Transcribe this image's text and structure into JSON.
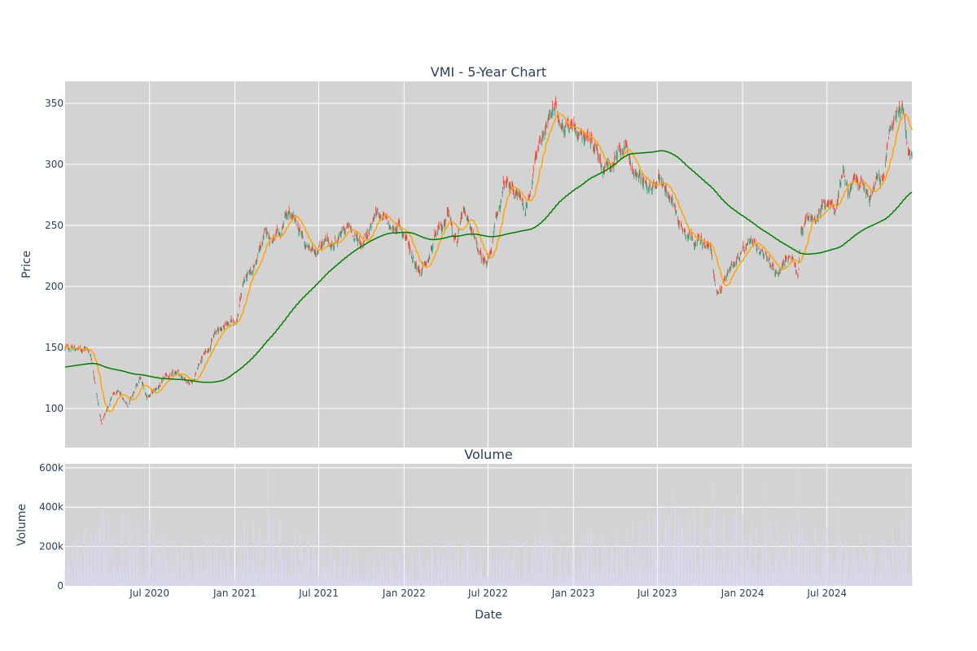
{
  "chart_data": [
    {
      "type": "candlestick",
      "title": "VMI - 5-Year Chart",
      "ylabel": "Price",
      "xlabel": "",
      "ylim": [
        68,
        368
      ],
      "yticks": [
        100,
        150,
        200,
        250,
        300,
        350
      ],
      "background": "#d3d3d3",
      "grid": true,
      "colors": {
        "up": "#3d9970",
        "down": "#ff4136",
        "ma_short": "#ffa500",
        "ma_long": "#008000"
      },
      "price_anchors": [
        [
          "2020-01-01",
          149
        ],
        [
          "2020-01-15",
          150
        ],
        [
          "2020-02-01",
          148
        ],
        [
          "2020-02-15",
          150
        ],
        [
          "2020-02-25",
          145
        ],
        [
          "2020-03-05",
          125
        ],
        [
          "2020-03-12",
          105
        ],
        [
          "2020-03-20",
          87
        ],
        [
          "2020-03-27",
          95
        ],
        [
          "2020-04-10",
          110
        ],
        [
          "2020-04-25",
          112
        ],
        [
          "2020-05-15",
          104
        ],
        [
          "2020-06-01",
          115
        ],
        [
          "2020-06-10",
          125
        ],
        [
          "2020-06-25",
          110
        ],
        [
          "2020-07-15",
          115
        ],
        [
          "2020-08-05",
          125
        ],
        [
          "2020-08-20",
          128
        ],
        [
          "2020-09-10",
          127
        ],
        [
          "2020-09-25",
          122
        ],
        [
          "2020-10-05",
          125
        ],
        [
          "2020-10-20",
          140
        ],
        [
          "2020-11-05",
          150
        ],
        [
          "2020-11-20",
          162
        ],
        [
          "2020-12-15",
          170
        ],
        [
          "2021-01-05",
          172
        ],
        [
          "2021-01-20",
          205
        ],
        [
          "2021-02-05",
          210
        ],
        [
          "2021-02-20",
          225
        ],
        [
          "2021-03-10",
          245
        ],
        [
          "2021-03-25",
          238
        ],
        [
          "2021-04-10",
          240
        ],
        [
          "2021-04-20",
          258
        ],
        [
          "2021-05-05",
          255
        ],
        [
          "2021-05-20",
          245
        ],
        [
          "2021-06-05",
          232
        ],
        [
          "2021-06-20",
          228
        ],
        [
          "2021-07-10",
          238
        ],
        [
          "2021-07-25",
          233
        ],
        [
          "2021-08-15",
          240
        ],
        [
          "2021-09-01",
          248
        ],
        [
          "2021-09-15",
          242
        ],
        [
          "2021-10-01",
          235
        ],
        [
          "2021-10-20",
          250
        ],
        [
          "2021-11-05",
          262
        ],
        [
          "2021-11-20",
          255
        ],
        [
          "2021-12-05",
          245
        ],
        [
          "2021-12-20",
          250
        ],
        [
          "2022-01-05",
          240
        ],
        [
          "2022-01-20",
          225
        ],
        [
          "2022-02-05",
          213
        ],
        [
          "2022-02-20",
          218
        ],
        [
          "2022-03-10",
          240
        ],
        [
          "2022-03-25",
          248
        ],
        [
          "2022-04-05",
          263
        ],
        [
          "2022-04-15",
          250
        ],
        [
          "2022-04-25",
          240
        ],
        [
          "2022-05-10",
          258
        ],
        [
          "2022-05-25",
          248
        ],
        [
          "2022-06-05",
          232
        ],
        [
          "2022-06-20",
          220
        ],
        [
          "2022-07-05",
          225
        ],
        [
          "2022-07-20",
          255
        ],
        [
          "2022-08-05",
          283
        ],
        [
          "2022-08-20",
          280
        ],
        [
          "2022-09-05",
          275
        ],
        [
          "2022-09-20",
          263
        ],
        [
          "2022-10-05",
          290
        ],
        [
          "2022-10-20",
          320
        ],
        [
          "2022-11-05",
          335
        ],
        [
          "2022-11-20",
          345
        ],
        [
          "2022-12-05",
          335
        ],
        [
          "2022-12-20",
          335
        ],
        [
          "2023-01-05",
          330
        ],
        [
          "2023-01-20",
          328
        ],
        [
          "2023-02-05",
          322
        ],
        [
          "2023-02-20",
          315
        ],
        [
          "2023-03-05",
          300
        ],
        [
          "2023-03-20",
          298
        ],
        [
          "2023-04-05",
          305
        ],
        [
          "2023-04-20",
          315
        ],
        [
          "2023-05-05",
          300
        ],
        [
          "2023-05-20",
          290
        ],
        [
          "2023-06-05",
          285
        ],
        [
          "2023-06-20",
          275
        ],
        [
          "2023-07-05",
          290
        ],
        [
          "2023-07-20",
          282
        ],
        [
          "2023-08-05",
          268
        ],
        [
          "2023-08-20",
          250
        ],
        [
          "2023-09-05",
          245
        ],
        [
          "2023-09-20",
          240
        ],
        [
          "2023-10-10",
          235
        ],
        [
          "2023-10-25",
          230
        ],
        [
          "2023-11-01",
          205
        ],
        [
          "2023-11-05",
          195
        ],
        [
          "2023-11-15",
          200
        ],
        [
          "2023-12-01",
          212
        ],
        [
          "2023-12-15",
          222
        ],
        [
          "2024-01-01",
          228
        ],
        [
          "2024-01-20",
          232
        ],
        [
          "2024-02-05",
          228
        ],
        [
          "2024-02-20",
          230
        ],
        [
          "2024-03-05",
          215
        ],
        [
          "2024-03-20",
          213
        ],
        [
          "2024-04-05",
          225
        ],
        [
          "2024-04-20",
          218
        ],
        [
          "2024-04-30",
          208
        ],
        [
          "2024-05-05",
          245
        ],
        [
          "2024-05-20",
          258
        ],
        [
          "2024-06-05",
          252
        ],
        [
          "2024-06-20",
          268
        ],
        [
          "2024-07-05",
          270
        ],
        [
          "2024-07-20",
          262
        ],
        [
          "2024-08-05",
          300
        ],
        [
          "2024-08-15",
          278
        ],
        [
          "2024-09-01",
          285
        ],
        [
          "2024-09-15",
          283
        ],
        [
          "2024-10-01",
          270
        ],
        [
          "2024-10-15",
          285
        ],
        [
          "2024-11-01",
          290
        ],
        [
          "2024-11-10",
          320
        ],
        [
          "2024-11-25",
          340
        ],
        [
          "2024-12-05",
          350
        ],
        [
          "2024-12-15",
          345
        ],
        [
          "2024-12-20",
          320
        ],
        [
          "2024-12-25",
          308
        ],
        [
          "2024-12-31",
          306
        ]
      ]
    },
    {
      "type": "bar",
      "title": "Volume",
      "ylabel": "Volume",
      "xlabel": "Date",
      "ylim": [
        0,
        620000
      ],
      "yticks": [
        0,
        200000,
        400000,
        600000
      ],
      "ytick_labels": [
        "0",
        "200k",
        "400k",
        "600k"
      ],
      "xticks": [
        "2020-07-01",
        "2021-01-01",
        "2021-07-01",
        "2022-01-01",
        "2022-07-01",
        "2023-01-01",
        "2023-07-01",
        "2024-01-01",
        "2024-07-01"
      ],
      "xtick_labels": [
        "Jul 2020",
        "Jan 2021",
        "Jul 2021",
        "Jan 2022",
        "Jul 2022",
        "Jan 2023",
        "Jul 2023",
        "Jan 2024",
        "Jul 2024"
      ],
      "xlim": [
        "2020-01-01",
        "2024-12-31"
      ],
      "background": "#d3d3d3",
      "colors": {
        "bar": "#d8d8f0"
      },
      "volume_anchors": [
        [
          "2020-01-01",
          120000
        ],
        [
          "2020-03-01",
          200000
        ],
        [
          "2020-04-01",
          220000
        ],
        [
          "2020-06-01",
          200000
        ],
        [
          "2020-09-01",
          130000
        ],
        [
          "2021-01-01",
          150000
        ],
        [
          "2021-03-01",
          220000
        ],
        [
          "2021-07-01",
          140000
        ],
        [
          "2022-01-01",
          100000
        ],
        [
          "2022-04-01",
          150000
        ],
        [
          "2022-07-01",
          110000
        ],
        [
          "2022-10-01",
          170000
        ],
        [
          "2023-01-01",
          140000
        ],
        [
          "2023-04-01",
          180000
        ],
        [
          "2023-07-01",
          230000
        ],
        [
          "2023-10-01",
          230000
        ],
        [
          "2024-01-01",
          200000
        ],
        [
          "2024-04-01",
          210000
        ],
        [
          "2024-07-01",
          170000
        ],
        [
          "2024-10-01",
          140000
        ],
        [
          "2024-12-31",
          200000
        ]
      ],
      "volume_spikes": [
        [
          "2020-03-23",
          440000
        ],
        [
          "2021-03-12",
          600000
        ],
        [
          "2022-10-27",
          450000
        ],
        [
          "2023-08-01",
          510000
        ],
        [
          "2023-10-31",
          545000
        ],
        [
          "2023-12-20",
          470000
        ],
        [
          "2024-02-22",
          540000
        ],
        [
          "2024-05-01",
          590000
        ],
        [
          "2024-07-25",
          480000
        ],
        [
          "2024-12-20",
          560000
        ]
      ]
    }
  ]
}
